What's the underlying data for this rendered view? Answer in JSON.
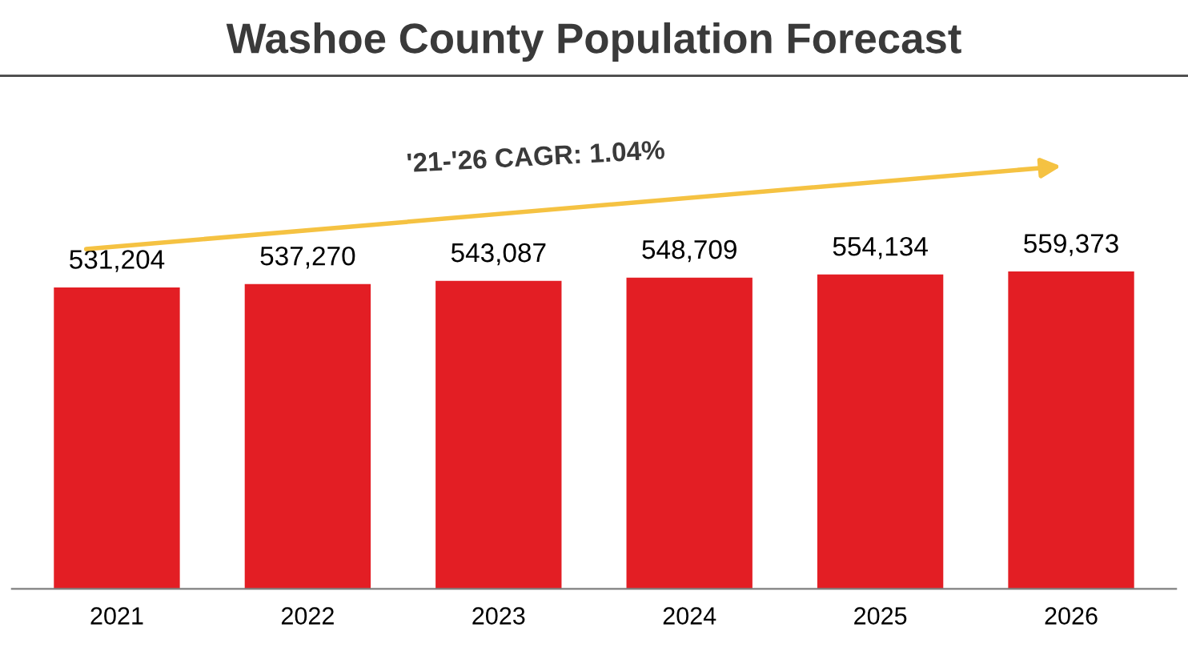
{
  "chart_data": {
    "type": "bar",
    "title": "Washoe County Population Forecast",
    "categories": [
      "2021",
      "2022",
      "2023",
      "2024",
      "2025",
      "2026"
    ],
    "values": [
      531204,
      537270,
      543087,
      548709,
      554134,
      559373
    ],
    "color": "#e31e24",
    "value_labels": [
      "531,204",
      "537,270",
      "543,087",
      "548,709",
      "554,134",
      "559,373"
    ],
    "grid": false,
    "legend": false,
    "tick_labels": "x",
    "annotations": [
      "'21-'26 CAGR: 1.04%"
    ]
  }
}
